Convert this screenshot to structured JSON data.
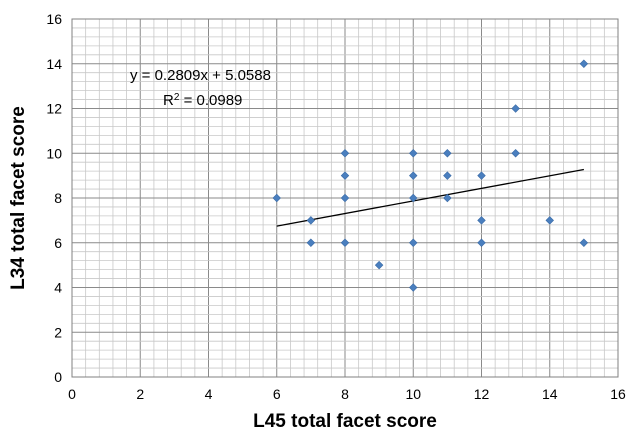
{
  "chart_data": {
    "type": "scatter",
    "title": "",
    "xlabel": "L45 total facet score",
    "ylabel": "L34 total facet score",
    "xlim": [
      0,
      16
    ],
    "ylim": [
      0,
      16
    ],
    "x_ticks": [
      0,
      2,
      4,
      6,
      8,
      10,
      12,
      14,
      16
    ],
    "y_ticks": [
      0,
      2,
      4,
      6,
      8,
      10,
      12,
      14,
      16
    ],
    "x_tick_labels": [
      "0",
      "2",
      "4",
      "6",
      "8",
      "10",
      "12",
      "14",
      "16"
    ],
    "y_tick_labels": [
      "0",
      "2",
      "4",
      "6",
      "8",
      "10",
      "12",
      "14",
      "16"
    ],
    "grid": true,
    "minor_grid": true,
    "legend": "none",
    "marker": "diamond",
    "marker_color": "#4a7fbf",
    "points": [
      {
        "x": 6,
        "y": 8
      },
      {
        "x": 7,
        "y": 7
      },
      {
        "x": 7,
        "y": 6
      },
      {
        "x": 8,
        "y": 10
      },
      {
        "x": 8,
        "y": 9
      },
      {
        "x": 8,
        "y": 8
      },
      {
        "x": 8,
        "y": 6
      },
      {
        "x": 9,
        "y": 5
      },
      {
        "x": 10,
        "y": 10
      },
      {
        "x": 10,
        "y": 9
      },
      {
        "x": 10,
        "y": 8
      },
      {
        "x": 10,
        "y": 6
      },
      {
        "x": 10,
        "y": 4
      },
      {
        "x": 11,
        "y": 10
      },
      {
        "x": 11,
        "y": 9
      },
      {
        "x": 11,
        "y": 8
      },
      {
        "x": 12,
        "y": 9
      },
      {
        "x": 12,
        "y": 7
      },
      {
        "x": 12,
        "y": 6
      },
      {
        "x": 13,
        "y": 12
      },
      {
        "x": 13,
        "y": 10
      },
      {
        "x": 14,
        "y": 7
      },
      {
        "x": 15,
        "y": 14
      },
      {
        "x": 15,
        "y": 6
      }
    ],
    "trendline": {
      "type": "linear",
      "slope": 0.2809,
      "intercept": 5.0588,
      "x_range": [
        6,
        15
      ],
      "color": "#000000",
      "equation_label": "y = 0.2809x + 5.0588",
      "r2_prefix": "R",
      "r2_sup": "2",
      "r2_suffix": " = 0.0989"
    }
  }
}
